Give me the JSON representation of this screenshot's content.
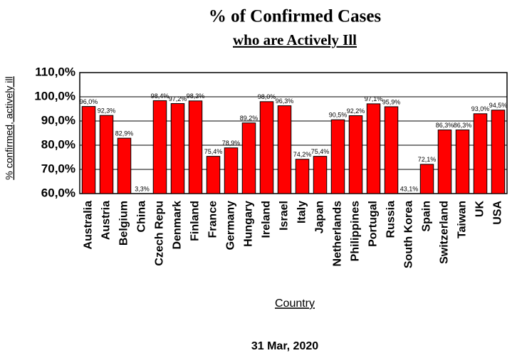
{
  "chart_data": {
    "type": "bar",
    "title": "% of Confirmed Cases",
    "subtitle": "who are Actively Ill",
    "x_label": "Country",
    "y_label": "% confirmed, actively ill",
    "footer": "31 Mar, 2020",
    "categories": [
      "Australia",
      "Austria",
      "Belgium",
      "China",
      "Czech Repu",
      "Denmark",
      "Finland",
      "France",
      "Germany",
      "Hungary",
      "Ireland",
      "Israel",
      "Italy",
      "Japan",
      "Netherlands",
      "Philippines",
      "Portugal",
      "Russia",
      "South Korea",
      "Spain",
      "Switzerland",
      "Taiwan",
      "UK",
      "USA"
    ],
    "values": [
      96.0,
      92.3,
      82.9,
      3.3,
      98.4,
      97.2,
      98.3,
      75.4,
      78.9,
      89.2,
      98.0,
      96.3,
      74.2,
      75.4,
      90.5,
      92.2,
      97.1,
      95.9,
      43.1,
      72.1,
      86.3,
      86.3,
      93.0,
      94.5
    ],
    "value_labels": [
      "96,0%",
      "92,3%",
      "82,9%",
      "3,3%",
      "98,4%",
      "97,2%",
      "98,3%",
      "75,4%",
      "78,9%",
      "89,2%",
      "98,0%",
      "96,3%",
      "74,2%",
      "75,4%",
      "90,5%",
      "92,2%",
      "97,1%",
      "95,9%",
      "43,1%",
      "72,1%",
      "86,3%",
      "86,3%",
      "93,0%",
      "94,5%"
    ],
    "color": "#ff0000",
    "ylim": [
      60,
      110
    ],
    "yticks": [
      {
        "value": 60,
        "label": "60,0%"
      },
      {
        "value": 70,
        "label": "70,0%"
      },
      {
        "value": 80,
        "label": "80,0%"
      },
      {
        "value": 90,
        "label": "90,0%"
      },
      {
        "value": 100,
        "label": "100,0%"
      },
      {
        "value": 110,
        "label": "110,0%"
      }
    ],
    "grid": true
  }
}
